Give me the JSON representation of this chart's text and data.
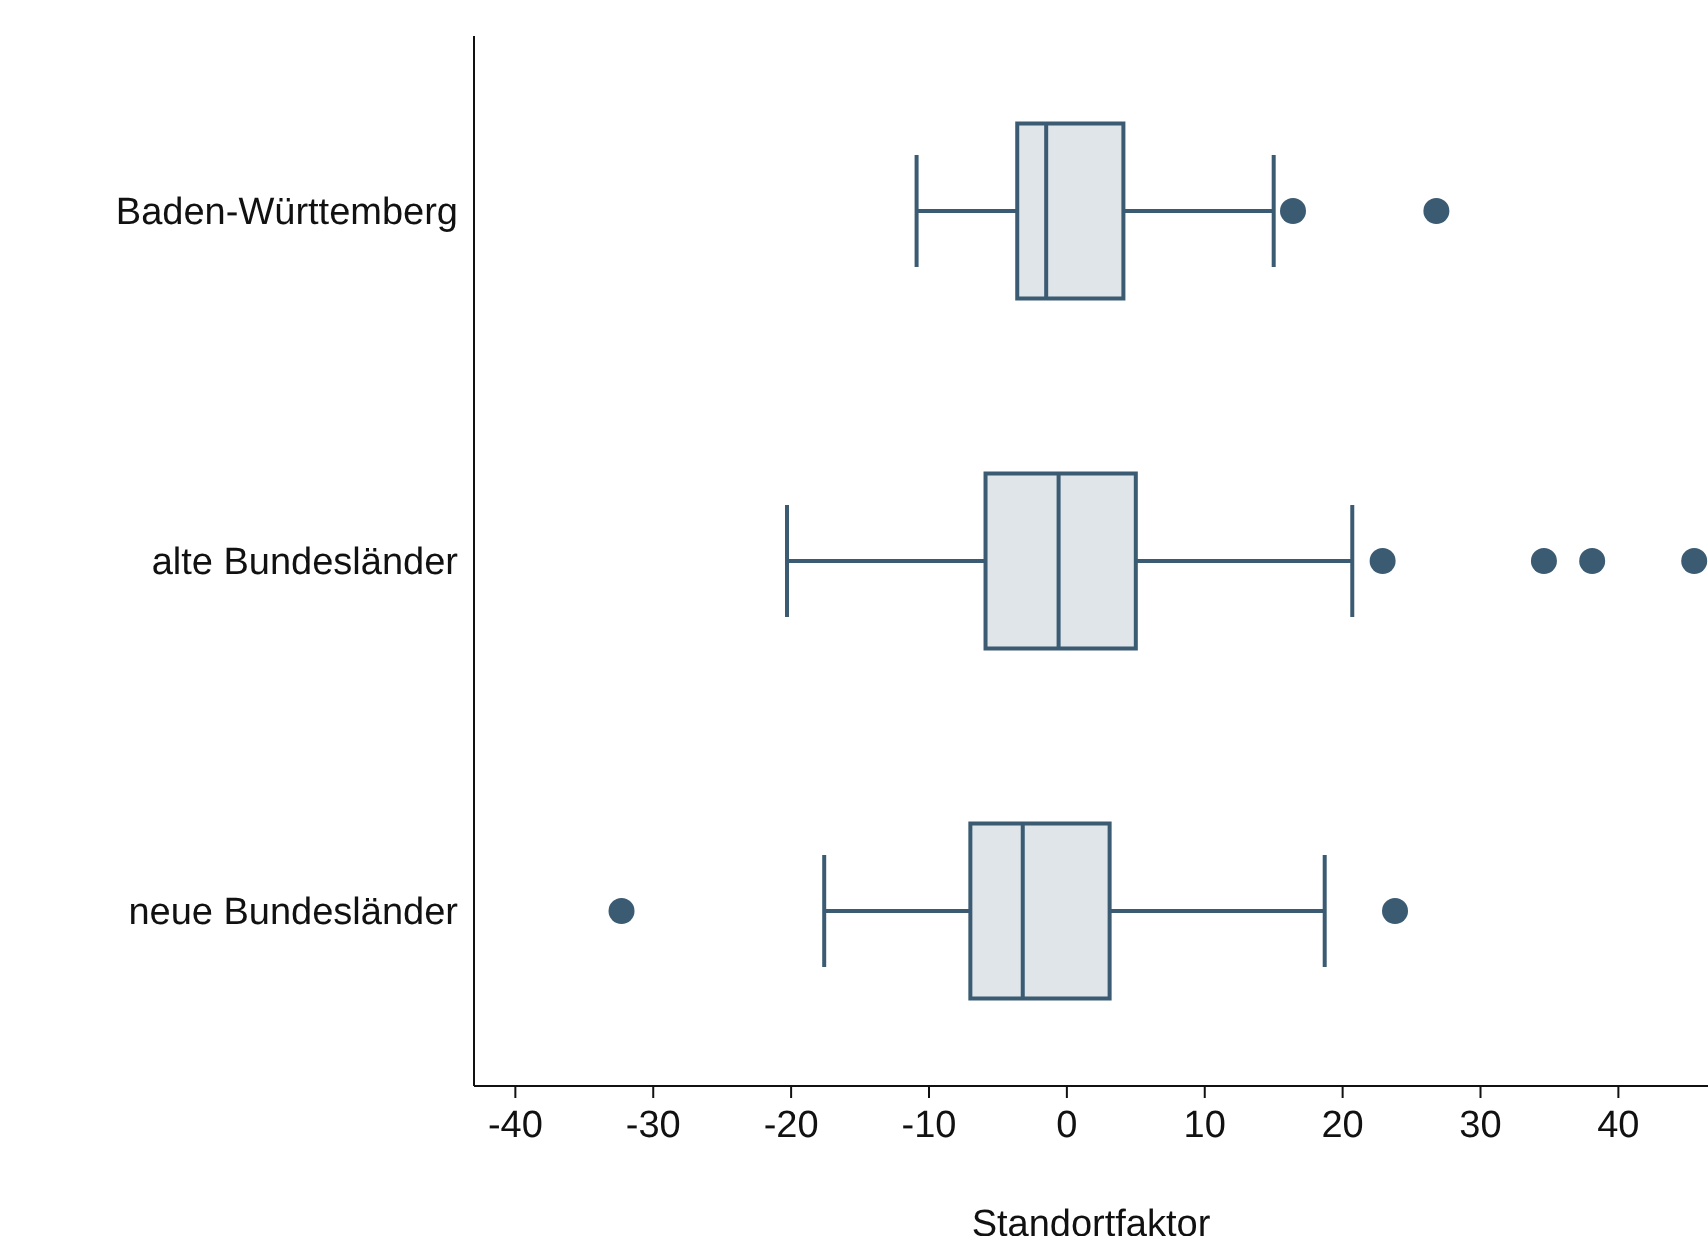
{
  "chart_data": {
    "type": "box",
    "orientation": "horizontal",
    "xlabel": "Standortfaktor",
    "categories": [
      "Baden-Württemberg",
      "alte Bundesländer",
      "neue Bundesländer"
    ],
    "color": "#3b5b73",
    "boxes": [
      {
        "low": -10.9,
        "q1": -3.6,
        "median": -1.5,
        "q3": 4.1,
        "high": 15.0,
        "outliers": [
          16.4,
          26.8
        ]
      },
      {
        "low": -20.3,
        "q1": -5.9,
        "median": -0.6,
        "q3": 5.0,
        "high": 20.7,
        "outliers": [
          22.9,
          34.6,
          38.1,
          45.5
        ]
      },
      {
        "low": -17.6,
        "q1": -7.0,
        "median": -3.2,
        "q3": 3.1,
        "high": 18.7,
        "outliers": [
          -32.3,
          23.8
        ]
      }
    ],
    "xlim": [
      -43,
      46.5
    ],
    "xticks": [
      -40,
      -30,
      -20,
      -10,
      0,
      10,
      20,
      30,
      40
    ]
  }
}
